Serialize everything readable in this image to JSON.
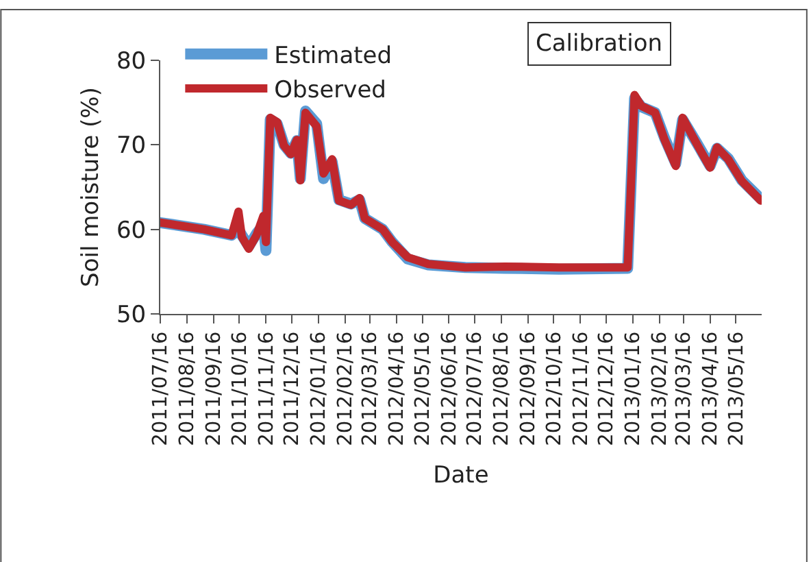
{
  "chart_data": {
    "type": "line",
    "xlabel": "Date",
    "ylabel": "Soil moisture (%)",
    "annotations": [
      "Calibration"
    ],
    "x": [
      "2011-07-16",
      "2011-09-05",
      "2011-10-07",
      "2011-10-15",
      "2011-10-19",
      "2011-10-27",
      "2011-11-05",
      "2011-11-13",
      "2011-11-16",
      "2011-11-21",
      "2011-11-29",
      "2011-12-07",
      "2011-12-15",
      "2011-12-22",
      "2011-12-26",
      "2012-01-01",
      "2012-01-14",
      "2012-01-22",
      "2012-02-01",
      "2012-02-09",
      "2012-02-23",
      "2012-03-04",
      "2012-03-10",
      "2012-03-31",
      "2012-04-11",
      "2012-04-29",
      "2012-05-23",
      "2012-07-05",
      "2012-08-20",
      "2012-10-22",
      "2013-01-10",
      "2013-01-18",
      "2013-01-26",
      "2013-02-11",
      "2013-02-22",
      "2013-03-07",
      "2013-03-15",
      "2013-03-31",
      "2013-04-16",
      "2013-04-24",
      "2013-05-07",
      "2013-05-23",
      "2013-06-14"
    ],
    "series": [
      {
        "name": "Estimated",
        "color": "#5b9bd5",
        "values": [
          60.8,
          60.0,
          59.3,
          60.0,
          59.3,
          58.0,
          59.5,
          60.5,
          57.5,
          73.0,
          72.5,
          70.0,
          69.0,
          70.5,
          66.0,
          74.0,
          72.5,
          66.0,
          68.0,
          63.5,
          63.0,
          63.5,
          61.3,
          60.0,
          58.5,
          56.5,
          55.8,
          55.5,
          55.4,
          55.3,
          55.4,
          75.5,
          74.5,
          73.8,
          70.8,
          67.8,
          73.0,
          70.3,
          67.5,
          69.6,
          68.4,
          65.8,
          63.6
        ]
      },
      {
        "name": "Observed",
        "color": "#c0282d",
        "values": [
          60.8,
          60.0,
          59.3,
          62.1,
          59.1,
          57.7,
          59.3,
          61.6,
          58.5,
          73.2,
          72.7,
          69.9,
          68.9,
          70.6,
          65.8,
          73.8,
          72.2,
          66.6,
          68.3,
          63.4,
          62.9,
          63.7,
          61.3,
          60.0,
          58.5,
          56.7,
          55.9,
          55.5,
          55.6,
          55.5,
          55.5,
          75.9,
          74.6,
          73.8,
          70.6,
          67.5,
          73.2,
          70.2,
          67.3,
          69.7,
          68.3,
          65.7,
          63.4
        ]
      }
    ],
    "xlim": [
      "2011-07-16",
      "2013-06-15"
    ],
    "xticks": [
      {
        "value": "2011-07-16",
        "label": "2011/07/16"
      },
      {
        "value": "2011-08-16",
        "label": "2011/08/16"
      },
      {
        "value": "2011-09-16",
        "label": "2011/09/16"
      },
      {
        "value": "2011-10-16",
        "label": "2011/10/16"
      },
      {
        "value": "2011-11-16",
        "label": "2011/11/16"
      },
      {
        "value": "2011-12-16",
        "label": "2011/12/16"
      },
      {
        "value": "2012-01-16",
        "label": "2012/01/16"
      },
      {
        "value": "2012-02-16",
        "label": "2012/02/16"
      },
      {
        "value": "2012-03-16",
        "label": "2012/03/16"
      },
      {
        "value": "2012-04-16",
        "label": "2012/04/16"
      },
      {
        "value": "2012-05-16",
        "label": "2012/05/16"
      },
      {
        "value": "2012-06-16",
        "label": "2012/06/16"
      },
      {
        "value": "2012-07-16",
        "label": "2012/07/16"
      },
      {
        "value": "2012-08-16",
        "label": "2012/08/16"
      },
      {
        "value": "2012-09-16",
        "label": "2012/09/16"
      },
      {
        "value": "2012-10-16",
        "label": "2012/10/16"
      },
      {
        "value": "2012-11-16",
        "label": "2012/11/16"
      },
      {
        "value": "2012-12-16",
        "label": "2012/12/16"
      },
      {
        "value": "2013-01-16",
        "label": "2013/01/16"
      },
      {
        "value": "2013-02-16",
        "label": "2013/02/16"
      },
      {
        "value": "2013-03-16",
        "label": "2013/03/16"
      },
      {
        "value": "2013-04-16",
        "label": "2013/04/16"
      },
      {
        "value": "2013-05-16",
        "label": "2013/05/16"
      }
    ],
    "ylim": [
      50,
      80
    ],
    "yticks": [
      50,
      60,
      70,
      80
    ],
    "grid": false,
    "legend": "top left",
    "marker": "none",
    "line_style": "solid"
  }
}
